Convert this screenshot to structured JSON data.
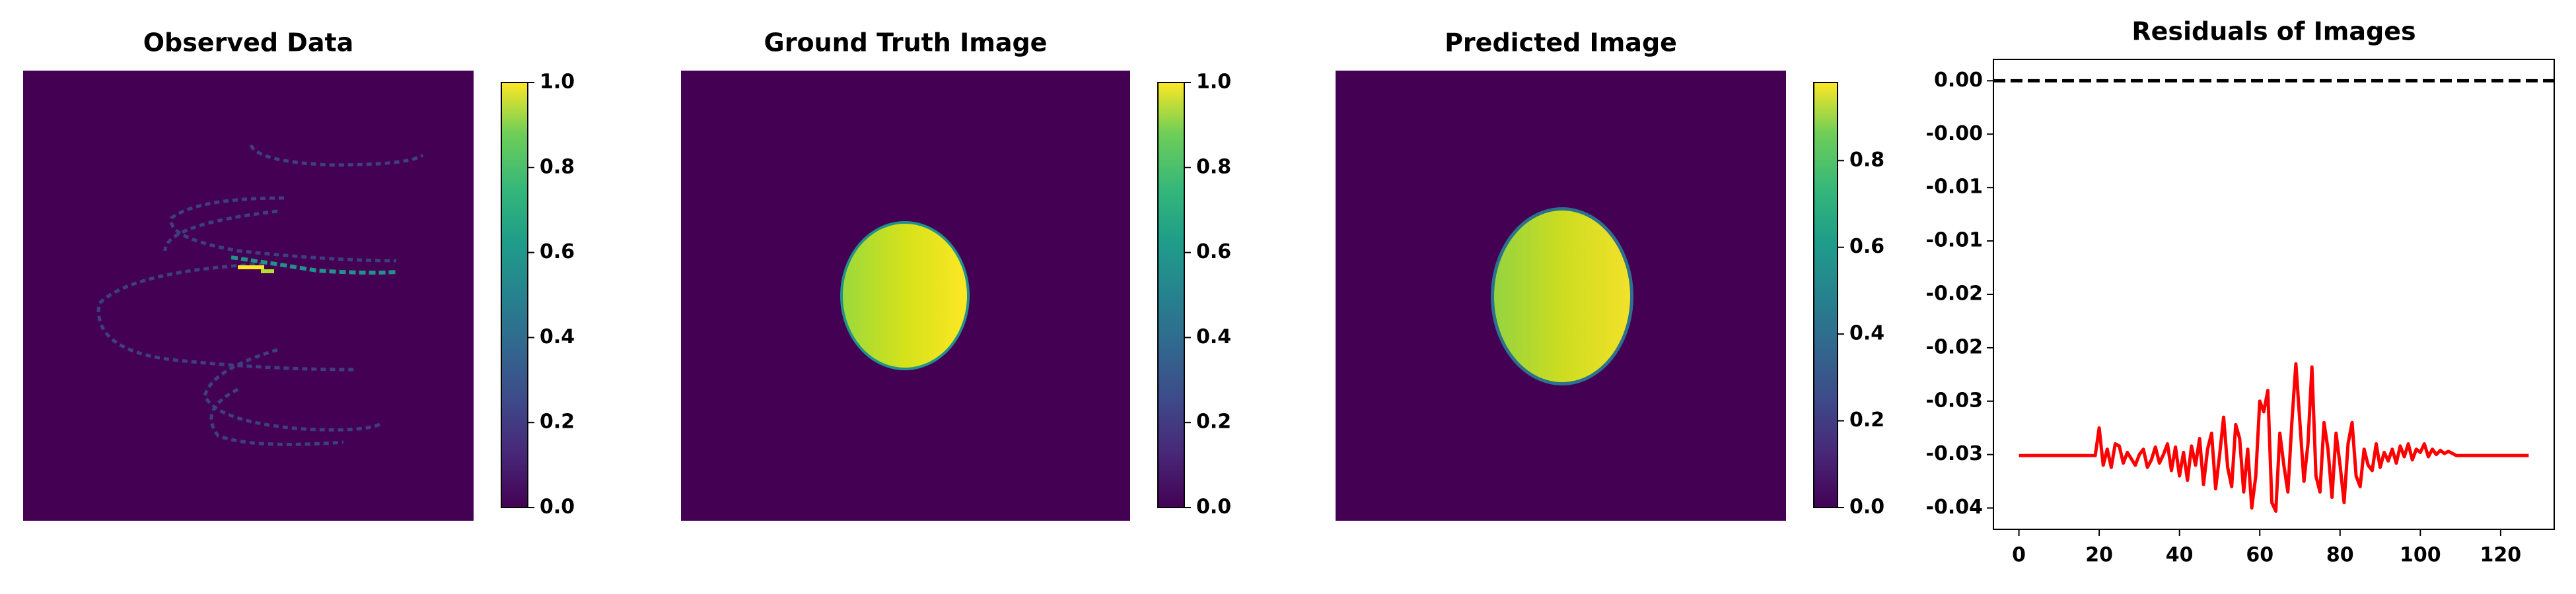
{
  "chart_data": [
    {
      "type": "image",
      "title": "Observed Data",
      "clim": [
        0,
        1
      ],
      "colorbar_ticks": [
        {
          "value": 0,
          "label": "0.0"
        },
        {
          "value": 0.2,
          "label": "0.2"
        },
        {
          "value": 0.4,
          "label": "0.4"
        },
        {
          "value": 0.6,
          "label": "0.6"
        },
        {
          "value": 0.8,
          "label": "0.8"
        },
        {
          "value": 1,
          "label": "1.0"
        }
      ]
    },
    {
      "type": "image",
      "title": "Ground Truth Image",
      "clim": [
        0,
        1
      ],
      "colorbar_ticks": [
        {
          "value": 0,
          "label": "0.0"
        },
        {
          "value": 0.2,
          "label": "0.2"
        },
        {
          "value": 0.4,
          "label": "0.4"
        },
        {
          "value": 0.6,
          "label": "0.6"
        },
        {
          "value": 0.8,
          "label": "0.8"
        },
        {
          "value": 1,
          "label": "1.0"
        }
      ]
    },
    {
      "type": "image",
      "title": "Predicted Image",
      "clim": [
        0,
        0.98
      ],
      "colorbar_ticks": [
        {
          "value": 0,
          "label": "0.0"
        },
        {
          "value": 0.2,
          "label": "0.2"
        },
        {
          "value": 0.4,
          "label": "0.4"
        },
        {
          "value": 0.6,
          "label": "0.6"
        },
        {
          "value": 0.8,
          "label": "0.8"
        }
      ]
    },
    {
      "type": "line",
      "title": "Residuals of Images",
      "x": [
        0,
        1,
        2,
        3,
        4,
        5,
        6,
        7,
        8,
        9,
        10,
        11,
        12,
        13,
        14,
        15,
        16,
        17,
        18,
        19,
        20,
        21,
        22,
        23,
        24,
        25,
        26,
        27,
        28,
        29,
        30,
        31,
        32,
        33,
        34,
        35,
        36,
        37,
        38,
        39,
        40,
        41,
        42,
        43,
        44,
        45,
        46,
        47,
        48,
        49,
        50,
        51,
        52,
        53,
        54,
        55,
        56,
        57,
        58,
        59,
        60,
        61,
        62,
        63,
        64,
        65,
        66,
        67,
        68,
        69,
        70,
        71,
        72,
        73,
        74,
        75,
        76,
        77,
        78,
        79,
        80,
        81,
        82,
        83,
        84,
        85,
        86,
        87,
        88,
        89,
        90,
        91,
        92,
        93,
        94,
        95,
        96,
        97,
        98,
        99,
        100,
        101,
        102,
        103,
        104,
        105,
        106,
        107,
        108,
        109,
        110,
        111,
        112,
        113,
        114,
        115,
        116,
        117,
        118,
        119,
        120,
        121,
        122,
        123,
        124,
        125,
        126,
        127
      ],
      "series": [
        {
          "color": "#ff0000",
          "values": [
            -0.0351,
            -0.0351,
            -0.0351,
            -0.0351,
            -0.0351,
            -0.0351,
            -0.0351,
            -0.0351,
            -0.0351,
            -0.0351,
            -0.0351,
            -0.0351,
            -0.0351,
            -0.0351,
            -0.0351,
            -0.0351,
            -0.0351,
            -0.0351,
            -0.0351,
            -0.0351,
            -0.0325,
            -0.036,
            -0.0345,
            -0.0362,
            -0.034,
            -0.0342,
            -0.0358,
            -0.0348,
            -0.0354,
            -0.036,
            -0.035,
            -0.0345,
            -0.0362,
            -0.0355,
            -0.0343,
            -0.0358,
            -0.035,
            -0.034,
            -0.0365,
            -0.0343,
            -0.037,
            -0.0348,
            -0.0374,
            -0.0342,
            -0.036,
            -0.0335,
            -0.0378,
            -0.0345,
            -0.033,
            -0.0382,
            -0.035,
            -0.0315,
            -0.0362,
            -0.038,
            -0.0322,
            -0.0335,
            -0.0385,
            -0.0345,
            -0.04,
            -0.037,
            -0.03,
            -0.031,
            -0.029,
            -0.0395,
            -0.0403,
            -0.033,
            -0.036,
            -0.0385,
            -0.032,
            -0.0265,
            -0.032,
            -0.0375,
            -0.034,
            -0.0268,
            -0.037,
            -0.0385,
            -0.032,
            -0.0345,
            -0.039,
            -0.033,
            -0.036,
            -0.0395,
            -0.034,
            -0.032,
            -0.037,
            -0.038,
            -0.0345,
            -0.036,
            -0.0365,
            -0.034,
            -0.0362,
            -0.0348,
            -0.0356,
            -0.0345,
            -0.0358,
            -0.0342,
            -0.0352,
            -0.034,
            -0.0355,
            -0.0345,
            -0.0348,
            -0.034,
            -0.0352,
            -0.0345,
            -0.035,
            -0.0346,
            -0.0349,
            -0.0347,
            -0.0349,
            -0.0351,
            -0.0351,
            -0.0351,
            -0.0351,
            -0.0351,
            -0.0351,
            -0.0351,
            -0.0351,
            -0.0351,
            -0.0351,
            -0.0351,
            -0.0351,
            -0.0351,
            -0.0351,
            -0.0351,
            -0.0351,
            -0.0351,
            -0.0351,
            -0.0351
          ]
        }
      ],
      "hline": {
        "value": 0,
        "color": "#000000",
        "style": "dashed"
      },
      "xlim": [
        -6.35,
        133.35
      ],
      "ylim": [
        -0.042,
        0.002
      ],
      "xticks": [
        0,
        20,
        40,
        60,
        80,
        100,
        120
      ],
      "yticks": [
        {
          "value": 0,
          "label": "0.00"
        },
        {
          "value": -0.005,
          "label": "-0.00"
        },
        {
          "value": -0.01,
          "label": "-0.01"
        },
        {
          "value": -0.015,
          "label": "-0.01"
        },
        {
          "value": -0.02,
          "label": "-0.02"
        },
        {
          "value": -0.025,
          "label": "-0.02"
        },
        {
          "value": -0.03,
          "label": "-0.03"
        },
        {
          "value": -0.035,
          "label": "-0.03"
        },
        {
          "value": -0.04,
          "label": "-0.04"
        }
      ]
    }
  ]
}
